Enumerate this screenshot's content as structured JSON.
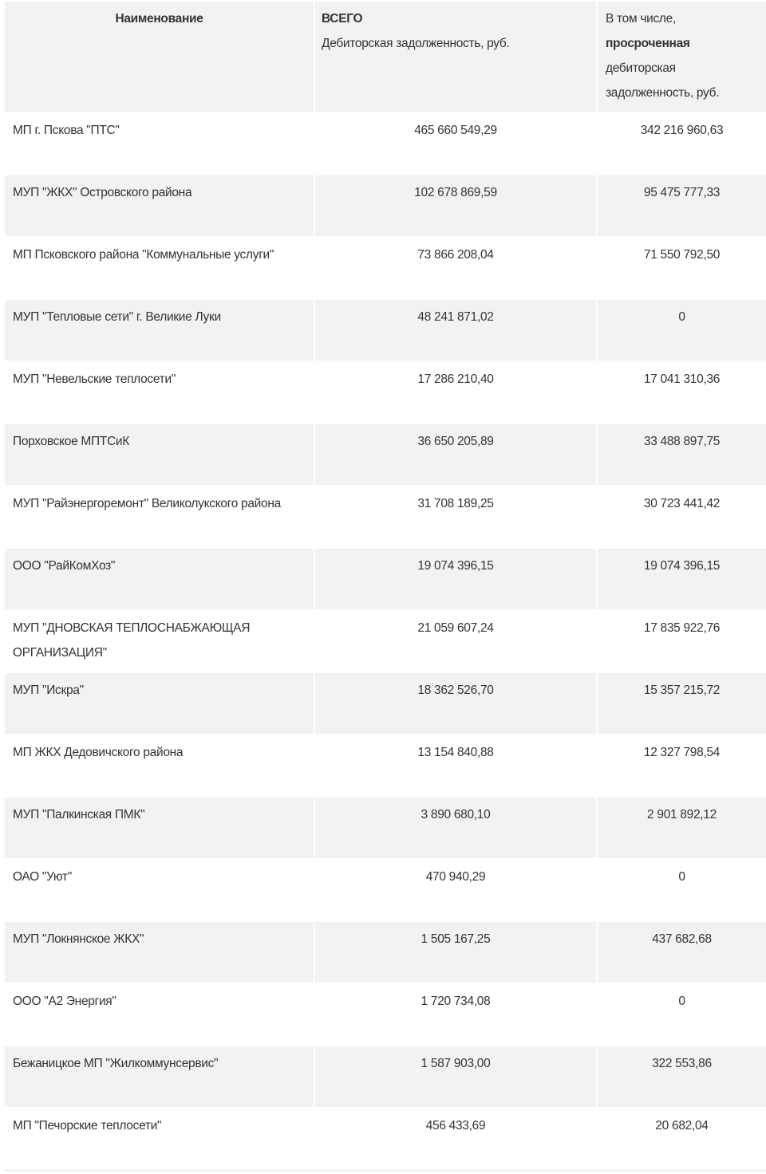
{
  "table": {
    "headers": {
      "name": "Наименование",
      "total_title": "ВСЕГО",
      "total_sub": "Дебиторская задолженность, руб.",
      "overdue_pre": "В том числе,",
      "overdue_bold": "просроченная",
      "overdue_post": "дебиторская задолженность, руб."
    },
    "rows": [
      {
        "name": "МП г. Пскова \"ПТС\"",
        "total": "465 660 549,29",
        "overdue": "342 216 960,63"
      },
      {
        "name": "МУП \"ЖКХ\" Островского района",
        "total": "102 678 869,59",
        "overdue": "95 475 777,33"
      },
      {
        "name": "МП Псковского района \"Коммунальные услуги\"",
        "total": "73 866 208,04",
        "overdue": "71 550 792,50"
      },
      {
        "name": "МУП \"Тепловые сети\" г. Великие Луки",
        "total": "48 241 871,02",
        "overdue": "0"
      },
      {
        "name": "МУП \"Невельские теплосети\"",
        "total": "17 286 210,40",
        "overdue": "17 041 310,36"
      },
      {
        "name": "Порховское МПТСиК",
        "total": "36 650 205,89",
        "overdue": "33 488 897,75"
      },
      {
        "name": "МУП \"Райэнергоремонт\" Великолукского района",
        "total": "31 708 189,25",
        "overdue": "30 723 441,42"
      },
      {
        "name": "ООО \"РайКомХоз\"",
        "total": "19 074 396,15",
        "overdue": "19 074 396,15"
      },
      {
        "name": "МУП \"ДНОВСКАЯ ТЕПЛОСНАБЖАЮЩАЯ ОРГАНИЗАЦИЯ\"",
        "total": "21 059 607,24",
        "overdue": "17 835 922,76"
      },
      {
        "name": "МУП \"Искра\"",
        "total": "18 362 526,70",
        "overdue": "15 357 215,72"
      },
      {
        "name": "МП ЖКХ Дедовичского района",
        "total": "13 154 840,88",
        "overdue": "12 327 798,54"
      },
      {
        "name": "МУП \"Палкинская ПМК\"",
        "total": "3 890 680,10",
        "overdue": "2 901 892,12"
      },
      {
        "name": "ОАО \"Уют\"",
        "total": "470 940,29",
        "overdue": "0"
      },
      {
        "name": "МУП \"Локнянское ЖКХ\"",
        "total": "1 505 167,25",
        "overdue": "437 682,68"
      },
      {
        "name": "ООО \"А2 Энергия\"",
        "total": "1 720 734,08",
        "overdue": "0"
      },
      {
        "name": "Бежаницкое МП \"Жилкоммунсервис\"",
        "total": "1 587 903,00",
        "overdue": "322 553,86"
      },
      {
        "name": "МП \"Печорские теплосети\"",
        "total": "456 433,69",
        "overdue": "20 682,04"
      }
    ]
  }
}
